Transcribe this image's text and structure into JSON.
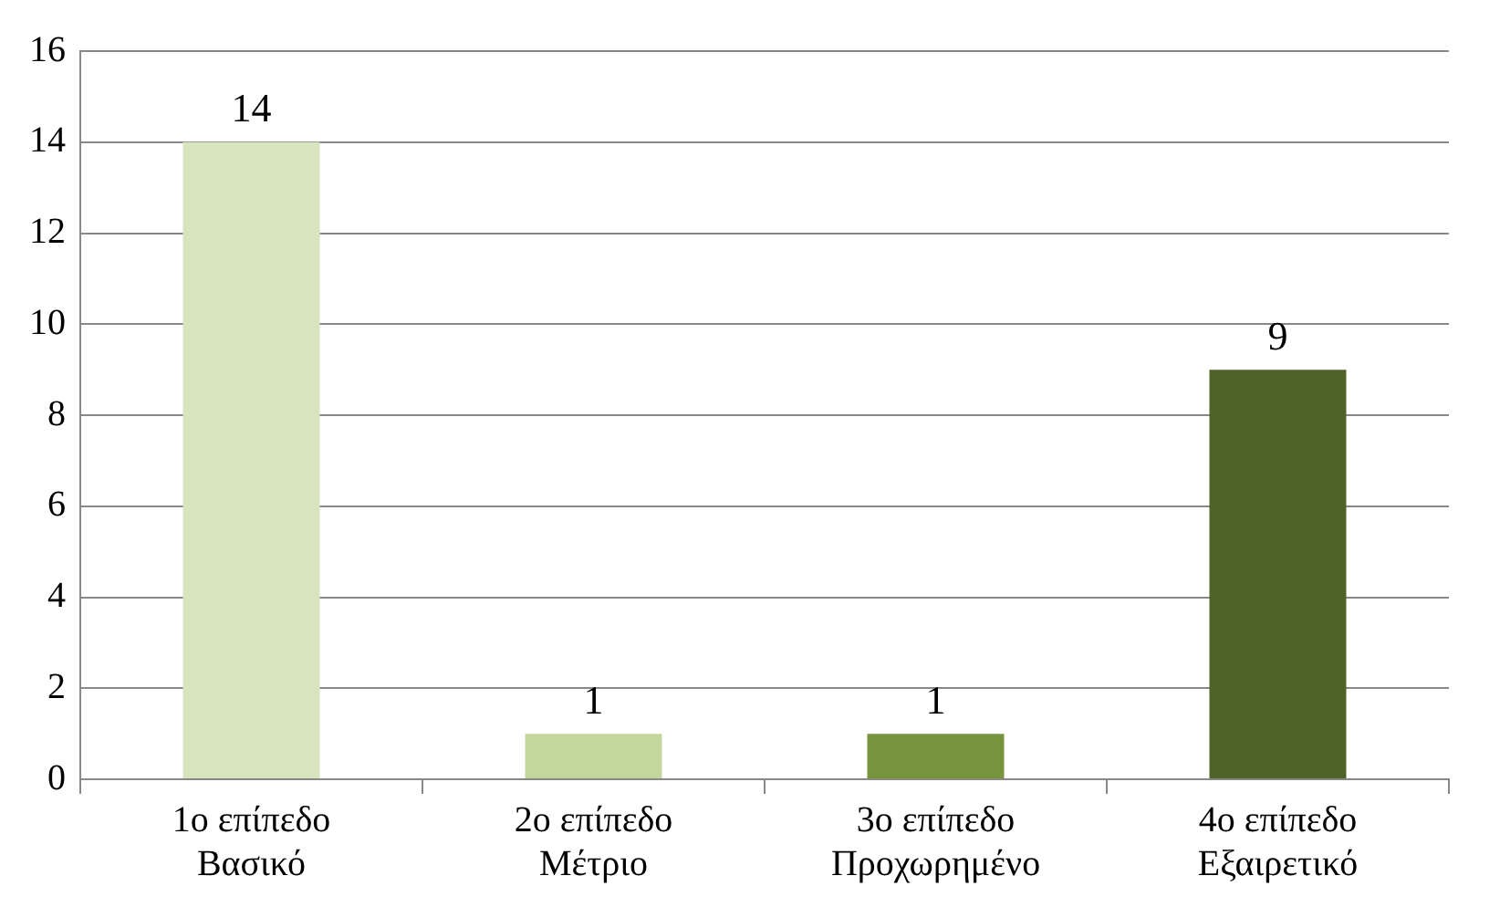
{
  "chart_data": {
    "type": "bar",
    "categories": [
      "1ο επίπεδο\nΒασικό",
      "2ο επίπεδο\nΜέτριο",
      "3ο επίπεδο\nΠροχωρημένο",
      "4ο επίπεδο\nΕξαιρετικό"
    ],
    "values": [
      14,
      1,
      1,
      9
    ],
    "colors": [
      "#d7e4bd",
      "#c3d69b",
      "#77933c",
      "#4f6228"
    ],
    "ylim": [
      0,
      16
    ],
    "yticks": [
      0,
      2,
      4,
      6,
      8,
      10,
      12,
      14,
      16
    ],
    "grid": "y",
    "data_labels": true,
    "legend": false
  }
}
